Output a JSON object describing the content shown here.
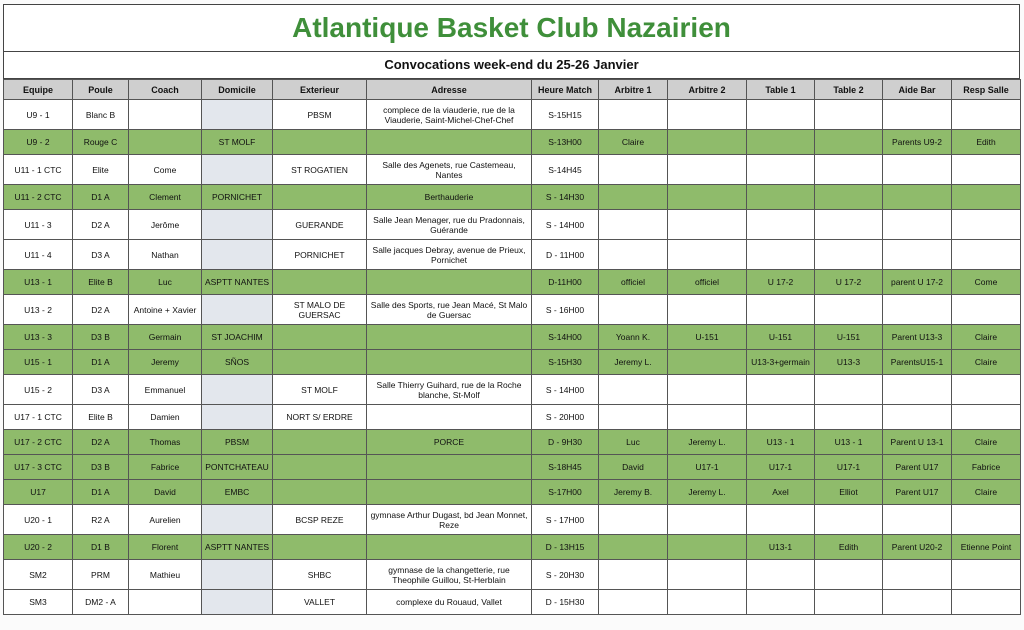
{
  "header": {
    "title": "Atlantique Basket Club Nazairien",
    "subtitle": "Convocations week-end du 25-26 Janvier"
  },
  "table": {
    "columns": [
      "Equipe",
      "Poule",
      "Coach",
      "Domicile",
      "Exterieur",
      "Adresse",
      "Heure Match",
      "Arbitre 1",
      "Arbitre 2",
      "Table 1",
      "Table 2",
      "Aide Bar",
      "Resp Salle"
    ],
    "rows": [
      {
        "highlight": false,
        "cells": [
          "U9 - 1",
          "Blanc B",
          null,
          null,
          "PBSM",
          "complece de la viauderie, rue de la Viauderie, Saint-Michel-Chef-Chef",
          "S-15H15",
          null,
          null,
          null,
          null,
          null,
          null
        ]
      },
      {
        "highlight": true,
        "cells": [
          "U9 - 2",
          "Rouge C",
          null,
          "ST MOLF",
          null,
          null,
          "S-13H00",
          "Claire",
          null,
          null,
          null,
          "Parents U9-2",
          "Edith"
        ]
      },
      {
        "highlight": false,
        "cells": [
          "U11 - 1 CTC",
          "Elite",
          "Come",
          null,
          "ST ROGATIEN",
          "Salle des Agenets, rue Castemeau, Nantes",
          "S-14H45",
          null,
          null,
          null,
          null,
          null,
          null
        ]
      },
      {
        "highlight": true,
        "cells": [
          "U11 - 2 CTC",
          "D1 A",
          "Clement",
          "PORNICHET",
          null,
          "Berthauderie",
          "S - 14H30",
          null,
          null,
          null,
          null,
          null,
          null
        ]
      },
      {
        "highlight": false,
        "cells": [
          "U11 - 3",
          "D2 A",
          "Jerôme",
          null,
          "GUERANDE",
          "Salle Jean Menager, rue du Pradonnais, Guérande",
          "S - 14H00",
          null,
          null,
          null,
          null,
          null,
          null
        ]
      },
      {
        "highlight": false,
        "cells": [
          "U11 - 4",
          "D3 A",
          "Nathan",
          null,
          "PORNICHET",
          "Salle jacques Debray, avenue de Prieux, Pornichet",
          "D - 11H00",
          null,
          null,
          null,
          null,
          null,
          null
        ]
      },
      {
        "highlight": true,
        "cells": [
          "U13 - 1",
          "Elite B",
          "Luc",
          "ASPTT NANTES",
          null,
          null,
          "D-11H00",
          "officiel",
          "officiel",
          "U 17-2",
          "U 17-2",
          "parent U 17-2",
          "Come"
        ]
      },
      {
        "highlight": false,
        "cells": [
          "U13 - 2",
          "D2 A",
          "Antoine + Xavier",
          null,
          "ST MALO DE GUERSAC",
          "Salle des Sports, rue Jean Macé, St Malo de Guersac",
          "S - 16H00",
          null,
          null,
          null,
          null,
          null,
          null
        ]
      },
      {
        "highlight": true,
        "cells": [
          "U13 - 3",
          "D3 B",
          "Germain",
          "ST JOACHIM",
          null,
          null,
          "S-14H00",
          "Yoann K.",
          "U-151",
          "U-151",
          "U-151",
          "Parent U13-3",
          "Claire"
        ]
      },
      {
        "highlight": true,
        "cells": [
          "U15 - 1",
          "D1 A",
          "Jeremy",
          "SÑOS",
          null,
          null,
          "S-15H30",
          "Jeremy L.",
          null,
          "U13-3+germain",
          "U13-3",
          "ParentsU15-1",
          "Claire"
        ]
      },
      {
        "highlight": false,
        "cells": [
          "U15 - 2",
          "D3 A",
          "Emmanuel",
          null,
          "ST MOLF",
          "Salle Thierry Guihard, rue de la Roche blanche, St-Molf",
          "S - 14H00",
          null,
          null,
          null,
          null,
          null,
          null
        ]
      },
      {
        "highlight": false,
        "cells": [
          "U17 - 1 CTC",
          "Elite B",
          "Damien",
          null,
          "NORT S/ ERDRE",
          null,
          "S - 20H00",
          null,
          null,
          null,
          null,
          null,
          null
        ]
      },
      {
        "highlight": true,
        "cells": [
          "U17 - 2 CTC",
          "D2 A",
          "Thomas",
          "PBSM",
          null,
          "PORCE",
          "D - 9H30",
          "Luc",
          "Jeremy L.",
          "U13 - 1",
          "U13 - 1",
          "Parent U 13-1",
          "Claire"
        ]
      },
      {
        "highlight": true,
        "cells": [
          "U17 - 3 CTC",
          "D3 B",
          "Fabrice",
          "PONTCHATEAU",
          null,
          null,
          "S-18H45",
          "David",
          "U17-1",
          "U17-1",
          "U17-1",
          "Parent U17",
          "Fabrice"
        ]
      },
      {
        "highlight": true,
        "cells": [
          "U17",
          "D1 A",
          "David",
          "EMBC",
          null,
          null,
          "S-17H00",
          "Jeremy B.",
          "Jeremy L.",
          "Axel",
          "Elliot",
          "Parent U17",
          "Claire"
        ]
      },
      {
        "highlight": false,
        "cells": [
          "U20 - 1",
          "R2 A",
          "Aurelien",
          null,
          "BCSP REZE",
          "gymnase Arthur Dugast, bd Jean Monnet, Reze",
          "S - 17H00",
          null,
          null,
          null,
          null,
          null,
          null
        ]
      },
      {
        "highlight": true,
        "cells": [
          "U20 - 2",
          "D1 B",
          "Florent",
          "ASPTT NANTES",
          null,
          null,
          "D - 13H15",
          null,
          null,
          "U13-1",
          "Edith",
          "Parent U20-2",
          "Etienne Point"
        ]
      },
      {
        "highlight": false,
        "cells": [
          "SM2",
          "PRM",
          "Mathieu",
          null,
          "SHBC",
          "gymnase de la changetterie, rue Theophile Guillou, St-Herblain",
          "S - 20H30",
          null,
          null,
          null,
          null,
          null,
          null
        ]
      },
      {
        "highlight": false,
        "cells": [
          "SM3",
          "DM2 - A",
          null,
          null,
          "VALLET",
          "complexe du Rouaud, Vallet",
          "D - 15H30",
          null,
          null,
          null,
          null,
          null,
          null
        ]
      }
    ]
  }
}
